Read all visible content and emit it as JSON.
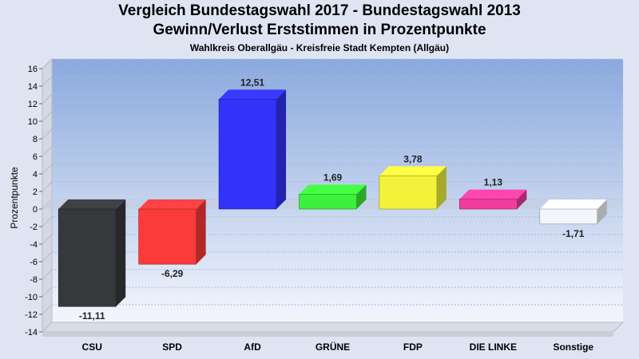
{
  "chart_data": {
    "type": "bar",
    "title": "Vergleich Bundestagswahl 2017 - Bundestagswahl 2013",
    "subtitle": "Gewinn/Verlust Erststimmen in Prozentpunkte",
    "subtitle2": "Wahlkreis Oberallgäu - Kreisfreie Stadt Kempten (Allgäu)",
    "ylabel": "Prozentpunkte",
    "xlabel": "",
    "ylim": [
      -14,
      16
    ],
    "yticks": [
      -14,
      -12,
      -10,
      -8,
      -6,
      -4,
      -2,
      0,
      2,
      4,
      6,
      8,
      10,
      12,
      14,
      16
    ],
    "grid": true,
    "categories": [
      "CSU",
      "SPD",
      "AfD",
      "GRÜNE",
      "FDP",
      "DIE LINKE",
      "Sonstige"
    ],
    "values": [
      -11.11,
      -6.29,
      12.51,
      1.69,
      3.78,
      1.13,
      -1.71
    ],
    "value_labels": [
      "-11,11",
      "-6,29",
      "12,51",
      "1,69",
      "3,78",
      "1,13",
      "-1,71"
    ],
    "colors": [
      "#36393c",
      "#fb3a3a",
      "#3232fa",
      "#3cf03c",
      "#f2f23a",
      "#f03c9b",
      "#f4f6fb"
    ]
  }
}
